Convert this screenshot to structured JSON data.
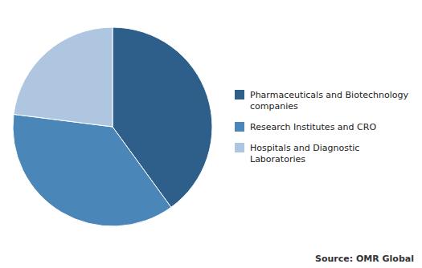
{
  "chart_data": {
    "type": "pie",
    "categories": [
      "Pharmaceuticals and Biotechnology\ncompanies",
      "Research Institutes and CRO",
      "Hospitals and Diagnostic\nLaboratories"
    ],
    "values": [
      40,
      37,
      23
    ],
    "colors": [
      "#2d5f8a",
      "#4a86b8",
      "#afc6e0"
    ],
    "legend": "right",
    "annotations": [
      "Source: OMR Global"
    ]
  }
}
